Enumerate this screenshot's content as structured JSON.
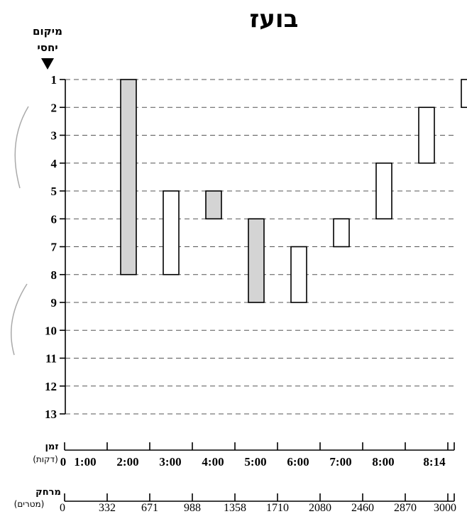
{
  "chart_data": {
    "type": "floating-bar",
    "title": "בועז",
    "ylabel": [
      "מיקום",
      "יחסי"
    ],
    "ylim": [
      1,
      13
    ],
    "y_ticks": [
      1,
      2,
      3,
      4,
      5,
      6,
      7,
      8,
      9,
      10,
      11,
      12,
      13
    ],
    "y_inverted": true,
    "grid": "dashed-horizontal",
    "time_axis": {
      "label": "זמן",
      "unit": "(דקות)",
      "ticks": [
        "0",
        "1:00",
        "2:00",
        "3:00",
        "4:00",
        "5:00",
        "6:00",
        "7:00",
        "8:00",
        "8:14"
      ]
    },
    "distance_axis": {
      "label": "מרחק",
      "unit": "(מטרים)",
      "ticks": [
        "0",
        "332",
        "671",
        "988",
        "1358",
        "1710",
        "2080",
        "2460",
        "2870",
        "3000"
      ]
    },
    "bars": [
      {
        "interval": 1,
        "from": 1,
        "to": 8,
        "shaded": true
      },
      {
        "interval": 2,
        "from": 5,
        "to": 8,
        "shaded": false
      },
      {
        "interval": 3,
        "from": 5,
        "to": 6,
        "shaded": true
      },
      {
        "interval": 4,
        "from": 6,
        "to": 9,
        "shaded": true
      },
      {
        "interval": 5,
        "from": 7,
        "to": 9,
        "shaded": false
      },
      {
        "interval": 6,
        "from": 6,
        "to": 7,
        "shaded": false
      },
      {
        "interval": 7,
        "from": 4,
        "to": 6,
        "shaded": false
      },
      {
        "interval": 8,
        "from": 2,
        "to": 4,
        "shaded": false
      },
      {
        "interval": 9,
        "from": 1,
        "to": 2,
        "shaded": false
      }
    ],
    "colors": {
      "shaded": "#d4d4d4",
      "unshaded": "#ffffff",
      "stroke": "#000000",
      "grid": "#555555"
    }
  }
}
